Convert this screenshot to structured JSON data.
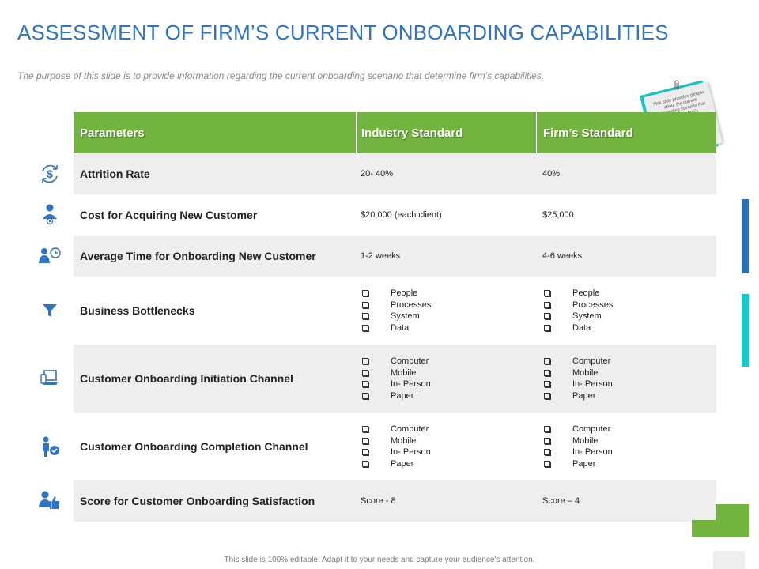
{
  "title": "ASSESSMENT OF FIRM’S CURRENT ONBOARDING CAPABILITIES",
  "subtitle": "The purpose of this slide is to provide information regarding the current onboarding scenario that determine firm’s capabilities.",
  "note": "This slide provides glimpse about the current onboarding scenario that determine firm’s capabilities. User can made alterations in this slide according to their requirement.",
  "footer": "This slide is 100% editable. Adapt it to your needs and capture your audience’s attention.",
  "colors": {
    "title": "#2e73c4",
    "header_green": "#72b43f",
    "row_grey": "#eeeeee",
    "icon_blue": "#2e73c4",
    "accent_teal": "#19c6c8",
    "accent_blue": "#2e6fba"
  },
  "table": {
    "headers": [
      "Parameters",
      "Industry Standard",
      "Firm’s Standard"
    ],
    "rows": [
      {
        "icon": "dollar-cycle-icon",
        "parameter": "Attrition Rate",
        "industry": "20- 40%",
        "firm": "40%"
      },
      {
        "icon": "user-network-icon",
        "parameter": "Cost for Acquiring New Customer",
        "industry": "$20,000 (each client)",
        "firm": "$25,000"
      },
      {
        "icon": "user-clock-icon",
        "parameter": "Average Time for Onboarding New Customer",
        "industry": "1-2 weeks",
        "firm": "4-6 weeks"
      },
      {
        "icon": "funnel-icon",
        "parameter": "Business Bottlenecks",
        "industry_list": [
          "People",
          "Processes",
          "System",
          "Data"
        ],
        "firm_list": [
          "People",
          "Processes",
          "System",
          "Data"
        ]
      },
      {
        "icon": "devices-icon",
        "parameter": "Customer Onboarding Initiation Channel",
        "industry_list": [
          "Computer",
          "Mobile",
          "In- Person",
          "Paper"
        ],
        "firm_list": [
          "Computer",
          "Mobile",
          "In- Person",
          "Paper"
        ]
      },
      {
        "icon": "user-check-icon",
        "parameter": "Customer Onboarding Completion Channel",
        "industry_list": [
          "Computer",
          "Mobile",
          "In- Person",
          "Paper"
        ],
        "firm_list": [
          "Computer",
          "Mobile",
          "In- Person",
          "Paper"
        ]
      },
      {
        "icon": "user-thumbs-up-icon",
        "parameter": "Score for Customer Onboarding Satisfaction",
        "industry": "Score - 8",
        "firm": "Score – 4"
      }
    ]
  }
}
